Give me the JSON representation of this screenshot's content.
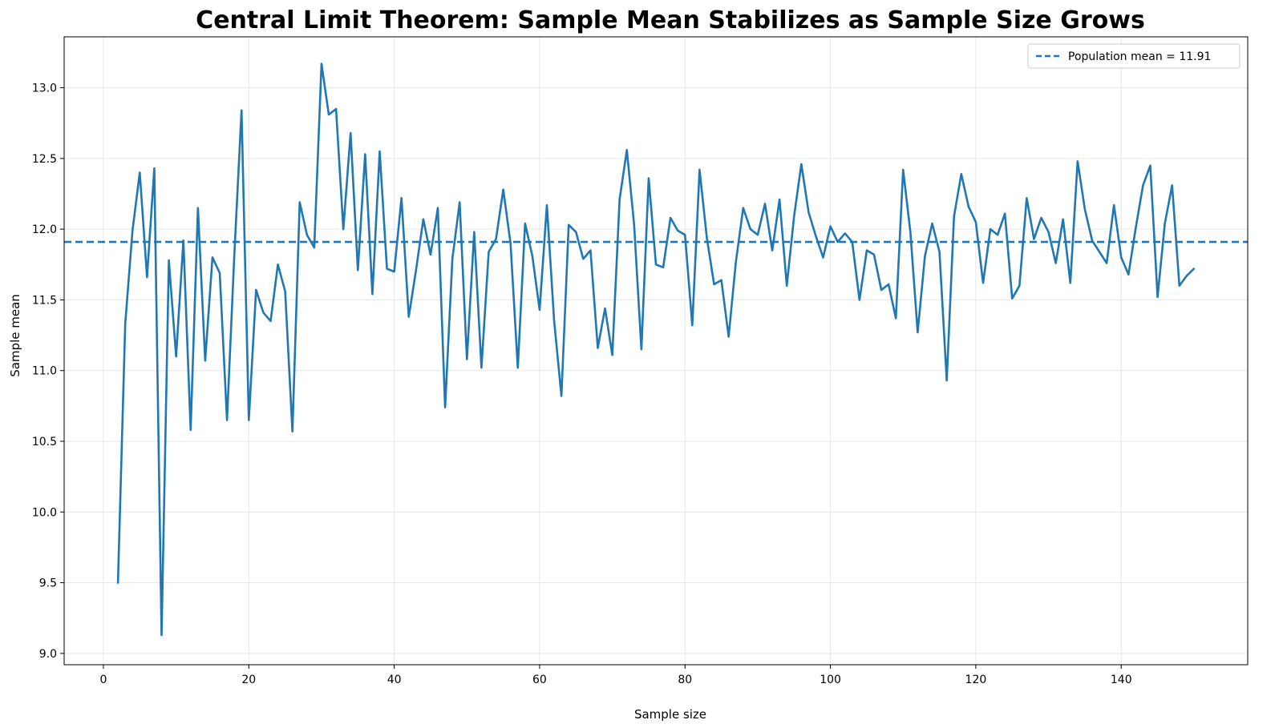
{
  "chart_data": {
    "type": "line",
    "title": "Central Limit Theorem: Sample Mean Stabilizes as Sample Size Grows",
    "xlabel": "Sample size",
    "ylabel": "Sample mean",
    "xlim": [
      -5.4,
      157.4
    ],
    "ylim": [
      8.92,
      13.36
    ],
    "xticks": [
      0,
      20,
      40,
      60,
      80,
      100,
      120,
      140
    ],
    "yticks": [
      9.0,
      9.5,
      10.0,
      10.5,
      11.0,
      11.5,
      12.0,
      12.5,
      13.0
    ],
    "grid": true,
    "legend_position": "top-right",
    "line_color": "#1f77b4",
    "reference_line": {
      "label": "Population mean = 11.91",
      "value": 11.91,
      "style": "dashed"
    },
    "series": [
      {
        "x_start": 2,
        "x_step": 1,
        "values": [
          9.5,
          11.33,
          11.99,
          12.4,
          11.66,
          12.43,
          9.13,
          11.78,
          11.1,
          11.92,
          10.58,
          12.15,
          11.07,
          11.8,
          11.69,
          10.65,
          11.81,
          12.84,
          10.65,
          11.57,
          11.41,
          11.35,
          11.75,
          11.56,
          10.57,
          12.19,
          11.96,
          11.87,
          13.17,
          12.81,
          12.85,
          12.0,
          12.68,
          11.71,
          12.53,
          11.54,
          12.55,
          11.72,
          11.7,
          12.22,
          11.38,
          11.71,
          12.07,
          11.82,
          12.15,
          10.74,
          11.79,
          12.19,
          11.08,
          11.98,
          11.02,
          11.84,
          11.93,
          12.28,
          11.9,
          11.02,
          12.04,
          11.81,
          11.43,
          12.17,
          11.35,
          10.82,
          12.03,
          11.98,
          11.79,
          11.85,
          11.16,
          11.44,
          11.11,
          12.21,
          12.56,
          12.03,
          11.15,
          12.36,
          11.75,
          11.73,
          12.08,
          11.99,
          11.96,
          11.32,
          12.42,
          11.94,
          11.61,
          11.64,
          11.24,
          11.77,
          12.15,
          12.0,
          11.96,
          12.18,
          11.85,
          12.21,
          11.6,
          12.09,
          12.46,
          12.12,
          11.95,
          11.8,
          12.02,
          11.91,
          11.97,
          11.91,
          11.5,
          11.85,
          11.82,
          11.57,
          11.61,
          11.37,
          12.42,
          11.98,
          11.27,
          11.81,
          12.04,
          11.84,
          10.93,
          12.09,
          12.39,
          12.16,
          12.05,
          11.62,
          12.0,
          11.96,
          12.11,
          11.51,
          11.6,
          12.22,
          11.93,
          12.08,
          11.98,
          11.76,
          12.07,
          11.62,
          12.48,
          12.14,
          11.92,
          11.84,
          11.76,
          12.17,
          11.8,
          11.68,
          12.01,
          12.31,
          12.45,
          11.52,
          12.04,
          12.31,
          11.6,
          11.67,
          11.72
        ]
      }
    ]
  }
}
